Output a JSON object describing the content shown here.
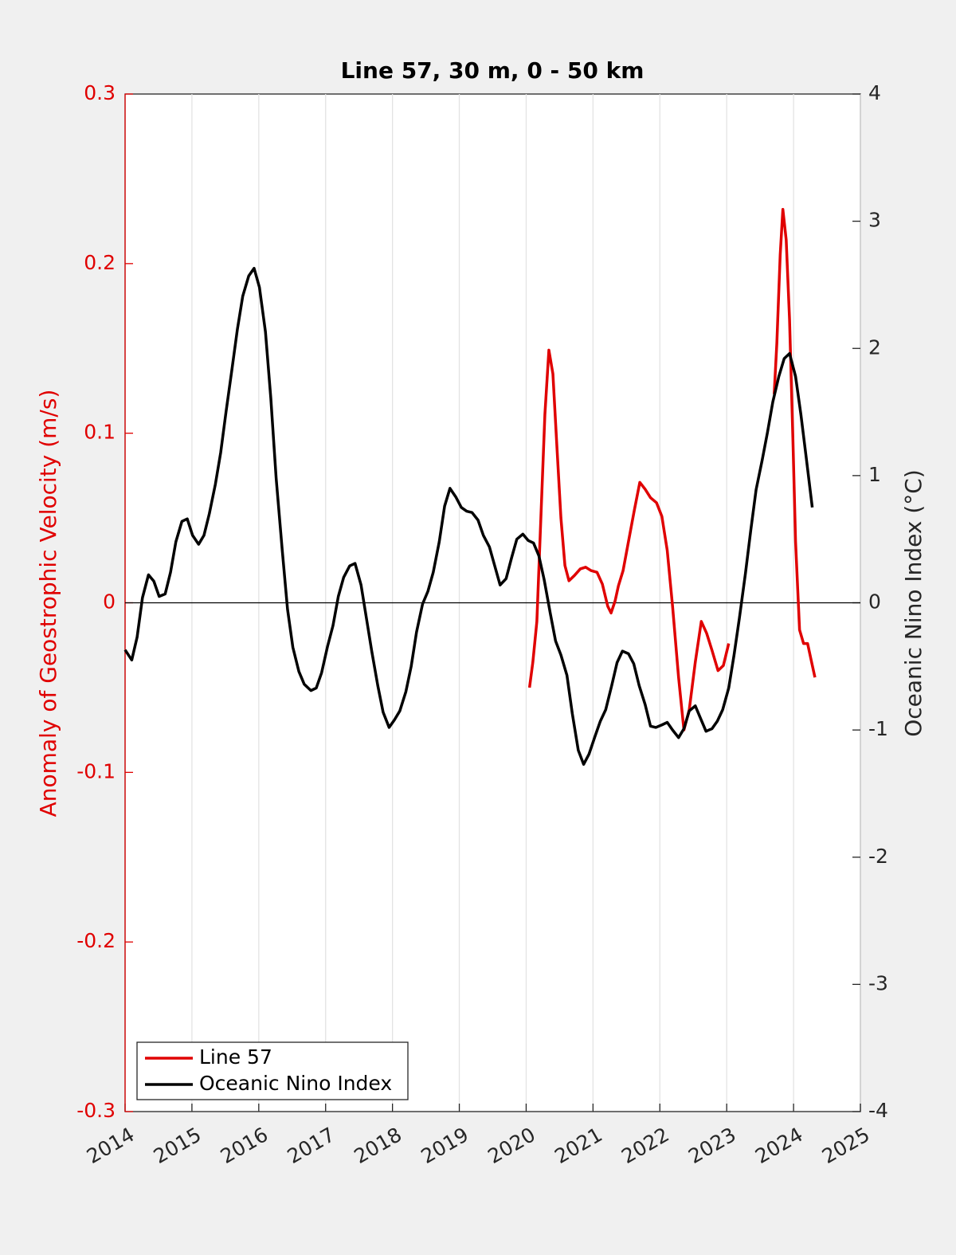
{
  "chart_data": {
    "type": "line",
    "title": "Line 57, 30 m, 0 - 50 km",
    "ylabel": "Anomaly of Geostrophic Velocity (m/s)",
    "y2label": "Oceanic Nino Index (°C)",
    "ylabel_color": "#e00000",
    "xlim": [
      2014,
      2025
    ],
    "xticks": [
      2014,
      2015,
      2016,
      2017,
      2018,
      2019,
      2020,
      2021,
      2022,
      2023,
      2024,
      2025
    ],
    "ylim": [
      -0.3,
      0.3
    ],
    "yticks": [
      -0.3,
      -0.2,
      -0.1,
      0,
      0.1,
      0.2,
      0.3
    ],
    "y2lim": [
      -4,
      4
    ],
    "y2ticks": [
      -4,
      -3,
      -2,
      -1,
      0,
      1,
      2,
      3,
      4
    ],
    "xgrid": true,
    "zero_line": true,
    "legend": "southwest",
    "series": [
      {
        "name": "Line 57",
        "color": "#e00000",
        "axis": "y",
        "x": [
          2020.05,
          2020.1,
          2020.16,
          2020.22,
          2020.28,
          2020.34,
          2020.4,
          2020.46,
          2020.52,
          2020.58,
          2020.64,
          2020.72,
          2020.81,
          2020.89,
          2020.97,
          2021.06,
          2021.14,
          2021.22,
          2021.27,
          2021.33,
          2021.38,
          2021.45,
          2021.53,
          2021.62,
          2021.7,
          2021.78,
          2021.86,
          2021.95,
          2022.03,
          2022.11,
          2022.19,
          2022.28,
          2022.36,
          2022.44,
          2022.53,
          2022.62,
          2022.7,
          2022.78,
          2022.87,
          2022.95,
          2023.03,
          2023.4,
          2023.71,
          2023.75,
          2023.8,
          2023.84,
          2023.89,
          2023.94,
          2023.99,
          2024.03,
          2024.09,
          2024.15,
          2024.21,
          2024.27,
          2024.32
        ],
        "values": [
          -0.05,
          -0.035,
          -0.011,
          0.05,
          0.111,
          0.149,
          0.135,
          0.092,
          0.05,
          0.022,
          0.013,
          0.016,
          0.02,
          0.021,
          0.019,
          0.018,
          0.011,
          -0.002,
          -0.006,
          0.001,
          0.01,
          0.019,
          0.036,
          0.055,
          0.071,
          0.067,
          0.062,
          0.059,
          0.051,
          0.031,
          -0.002,
          -0.044,
          -0.075,
          -0.063,
          -0.035,
          -0.011,
          -0.018,
          -0.028,
          -0.04,
          -0.037,
          -0.024,
          null,
          0.123,
          0.153,
          0.205,
          0.232,
          0.214,
          0.167,
          0.097,
          0.036,
          -0.016,
          -0.024,
          -0.024,
          -0.035,
          -0.044
        ]
      },
      {
        "name": "Oceanic Nino Index",
        "color": "#000000",
        "axis": "y2",
        "x": [
          2014.0,
          2014.1,
          2014.18,
          2014.26,
          2014.35,
          2014.43,
          2014.51,
          2014.6,
          2014.68,
          2014.76,
          2014.85,
          2014.93,
          2015.01,
          2015.1,
          2015.18,
          2015.26,
          2015.35,
          2015.43,
          2015.51,
          2015.6,
          2015.68,
          2015.76,
          2015.85,
          2015.93,
          2016.01,
          2016.1,
          2016.18,
          2016.26,
          2016.35,
          2016.43,
          2016.51,
          2016.6,
          2016.68,
          2016.78,
          2016.86,
          2016.94,
          2017.03,
          2017.11,
          2017.19,
          2017.27,
          2017.36,
          2017.44,
          2017.53,
          2017.61,
          2017.69,
          2017.78,
          2017.86,
          2017.95,
          2018.03,
          2018.11,
          2018.2,
          2018.28,
          2018.36,
          2018.45,
          2018.53,
          2018.61,
          2018.7,
          2018.78,
          2018.86,
          2018.95,
          2019.03,
          2019.11,
          2019.19,
          2019.28,
          2019.36,
          2019.45,
          2019.53,
          2019.61,
          2019.7,
          2019.78,
          2019.86,
          2019.95,
          2020.03,
          2020.11,
          2020.19,
          2020.27,
          2020.36,
          2020.44,
          2020.52,
          2020.61,
          2020.69,
          2020.78,
          2020.86,
          2020.94,
          2021.03,
          2021.11,
          2021.19,
          2021.28,
          2021.36,
          2021.44,
          2021.53,
          2021.61,
          2021.69,
          2021.78,
          2021.86,
          2021.94,
          2022.03,
          2022.11,
          2022.19,
          2022.28,
          2022.36,
          2022.44,
          2022.53,
          2022.61,
          2022.69,
          2022.78,
          2022.86,
          2022.94,
          2023.03,
          2023.11,
          2023.19,
          2023.28,
          2023.36,
          2023.44,
          2023.53,
          2023.61,
          2023.69,
          2023.78,
          2023.86,
          2023.94,
          2024.03,
          2024.11,
          2024.19,
          2024.28
        ],
        "values": [
          -0.37,
          -0.45,
          -0.27,
          0.04,
          0.22,
          0.17,
          0.05,
          0.07,
          0.24,
          0.48,
          0.64,
          0.66,
          0.53,
          0.46,
          0.53,
          0.7,
          0.93,
          1.18,
          1.5,
          1.84,
          2.15,
          2.41,
          2.57,
          2.63,
          2.48,
          2.13,
          1.61,
          0.98,
          0.42,
          -0.05,
          -0.35,
          -0.54,
          -0.64,
          -0.69,
          -0.67,
          -0.55,
          -0.34,
          -0.18,
          0.05,
          0.2,
          0.29,
          0.31,
          0.14,
          -0.12,
          -0.38,
          -0.65,
          -0.86,
          -0.98,
          -0.92,
          -0.85,
          -0.7,
          -0.5,
          -0.23,
          -0.01,
          0.09,
          0.24,
          0.48,
          0.76,
          0.9,
          0.83,
          0.75,
          0.72,
          0.71,
          0.65,
          0.53,
          0.44,
          0.29,
          0.14,
          0.19,
          0.35,
          0.5,
          0.54,
          0.49,
          0.47,
          0.37,
          0.18,
          -0.08,
          -0.3,
          -0.41,
          -0.57,
          -0.87,
          -1.16,
          -1.27,
          -1.19,
          -1.05,
          -0.93,
          -0.84,
          -0.65,
          -0.47,
          -0.38,
          -0.4,
          -0.48,
          -0.65,
          -0.8,
          -0.97,
          -0.98,
          -0.96,
          -0.94,
          -1.0,
          -1.06,
          -0.99,
          -0.85,
          -0.81,
          -0.91,
          -1.01,
          -0.99,
          -0.93,
          -0.84,
          -0.67,
          -0.41,
          -0.12,
          0.23,
          0.57,
          0.89,
          1.12,
          1.34,
          1.58,
          1.78,
          1.92,
          1.96,
          1.78,
          1.48,
          1.14,
          0.75
        ]
      }
    ]
  }
}
